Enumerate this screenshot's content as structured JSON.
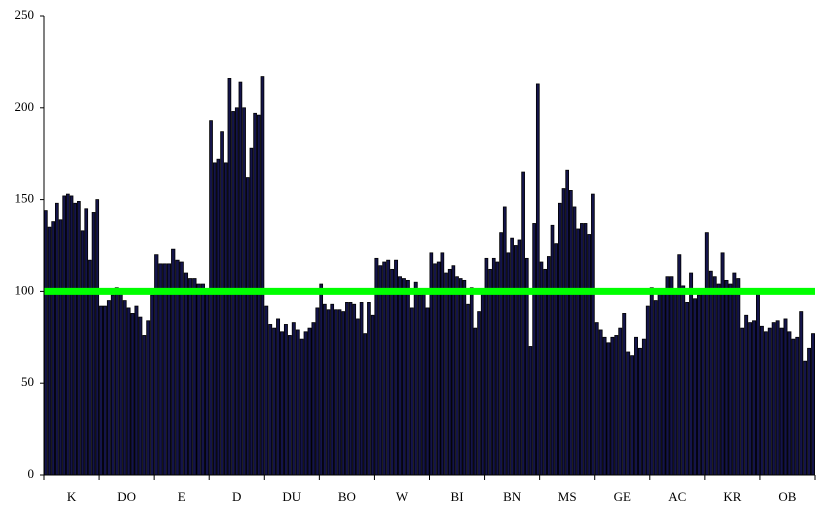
{
  "chart_data": {
    "type": "grouped-bar",
    "groups": [
      {
        "name": "K",
        "values": [
          144,
          135,
          138,
          148,
          139,
          152,
          153,
          152,
          148,
          149,
          133,
          145,
          117,
          143,
          150
        ]
      },
      {
        "name": "DO",
        "values": [
          92,
          92,
          95,
          98,
          102,
          100,
          95,
          91,
          88,
          92,
          86,
          76,
          84,
          98
        ]
      },
      {
        "name": "E",
        "values": [
          120,
          115,
          115,
          115,
          123,
          117,
          116,
          110,
          107,
          107,
          104,
          104,
          100
        ]
      },
      {
        "name": "D",
        "values": [
          193,
          170,
          172,
          187,
          170,
          216,
          198,
          200,
          214,
          200,
          162,
          178,
          197,
          196,
          217
        ]
      },
      {
        "name": "DU",
        "values": [
          92,
          82,
          80,
          85,
          78,
          82,
          76,
          83,
          79,
          74,
          78,
          80,
          83,
          91
        ]
      },
      {
        "name": "BO",
        "values": [
          104,
          93,
          90,
          93,
          90,
          90,
          89,
          94,
          94,
          93,
          85,
          94,
          77,
          94,
          87
        ]
      },
      {
        "name": "W",
        "values": [
          118,
          114,
          116,
          117,
          112,
          117,
          108,
          107,
          106,
          91,
          105,
          98,
          100,
          91
        ]
      },
      {
        "name": "BI",
        "values": [
          121,
          115,
          116,
          121,
          110,
          112,
          114,
          108,
          107,
          106,
          93,
          102,
          80,
          89,
          100
        ]
      },
      {
        "name": "BN",
        "values": [
          118,
          112,
          118,
          116,
          132,
          146,
          121,
          129,
          125,
          128,
          165,
          118,
          70,
          137,
          213
        ]
      },
      {
        "name": "MS",
        "values": [
          116,
          112,
          119,
          136,
          126,
          148,
          156,
          166,
          155,
          146,
          134,
          137,
          137,
          131,
          153
        ]
      },
      {
        "name": "GE",
        "values": [
          83,
          79,
          75,
          72,
          75,
          76,
          80,
          88,
          67,
          65,
          75,
          69,
          74,
          92
        ]
      },
      {
        "name": "AC",
        "values": [
          102,
          95,
          101,
          99,
          108,
          108,
          99,
          120,
          103,
          94,
          110,
          96,
          98,
          101
        ]
      },
      {
        "name": "KR",
        "values": [
          132,
          111,
          108,
          104,
          121,
          106,
          104,
          110,
          107,
          80,
          87,
          83,
          84,
          100
        ]
      },
      {
        "name": "OB",
        "values": [
          81,
          78,
          80,
          83,
          84,
          80,
          85,
          78,
          74,
          75,
          89,
          62,
          69,
          77
        ]
      }
    ],
    "color": "#14144a",
    "reference_line": {
      "value": 100,
      "color": "#00ff00"
    },
    "ylim": [
      0,
      250
    ],
    "yticks": [
      0,
      50,
      100,
      150,
      200,
      250
    ]
  }
}
